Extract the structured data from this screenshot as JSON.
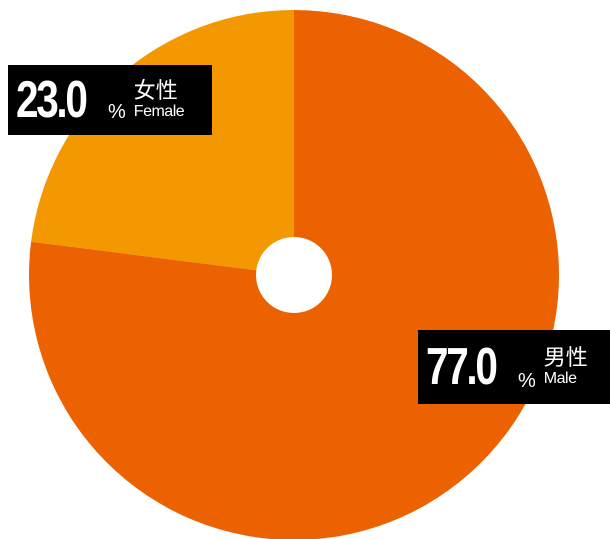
{
  "chart_data": {
    "type": "pie",
    "title": "",
    "categories": [
      "女性 Female",
      "男性 Male"
    ],
    "values": [
      23.0,
      77.0
    ],
    "unit": "%",
    "series": [
      {
        "values": [
          23.0,
          77.0
        ]
      }
    ],
    "slices": [
      {
        "label_cn": "女性",
        "label_en": "Female",
        "value": 23.0,
        "value_text": "23.0",
        "color": "#f39800"
      },
      {
        "label_cn": "男性",
        "label_en": "Male",
        "value": 77.0,
        "value_text": "77.0",
        "color": "#ec6200"
      }
    ],
    "percent_symbol": "%",
    "start_angle_deg": 0,
    "direction": "counterclockwise-from-top for female, remainder male",
    "donut_hole": true,
    "legend": "none",
    "grid": false
  }
}
